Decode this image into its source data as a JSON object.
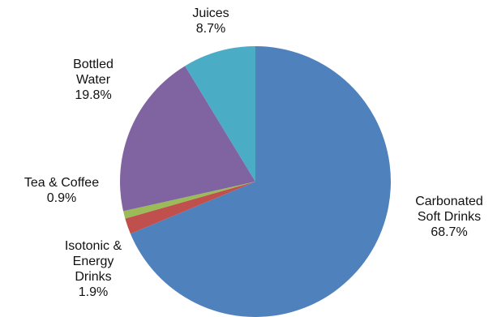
{
  "chart_data": {
    "type": "pie",
    "title": "",
    "start_angle_deg": 0,
    "direction": "clockwise",
    "legend": "none",
    "slices": [
      {
        "name": "Carbonated Soft Drinks",
        "label_lines": [
          "Carbonated",
          "Soft Drinks"
        ],
        "value": 68.7,
        "value_label": "68.7%",
        "color": "#4f81bd"
      },
      {
        "name": "Isotonic & Energy Drinks",
        "label_lines": [
          "Isotonic &",
          "Energy",
          "Drinks"
        ],
        "value": 1.9,
        "value_label": "1.9%",
        "color": "#c0504d"
      },
      {
        "name": "Tea & Coffee",
        "label_lines": [
          "Tea & Coffee"
        ],
        "value": 0.9,
        "value_label": "0.9%",
        "color": "#9bbb59"
      },
      {
        "name": "Bottled Water",
        "label_lines": [
          "Bottled",
          "Water"
        ],
        "value": 19.8,
        "value_label": "19.8%",
        "color": "#8064a2"
      },
      {
        "name": "Juices",
        "label_lines": [
          "Juices"
        ],
        "value": 8.7,
        "value_label": "8.7%",
        "color": "#4bacc6"
      }
    ]
  }
}
